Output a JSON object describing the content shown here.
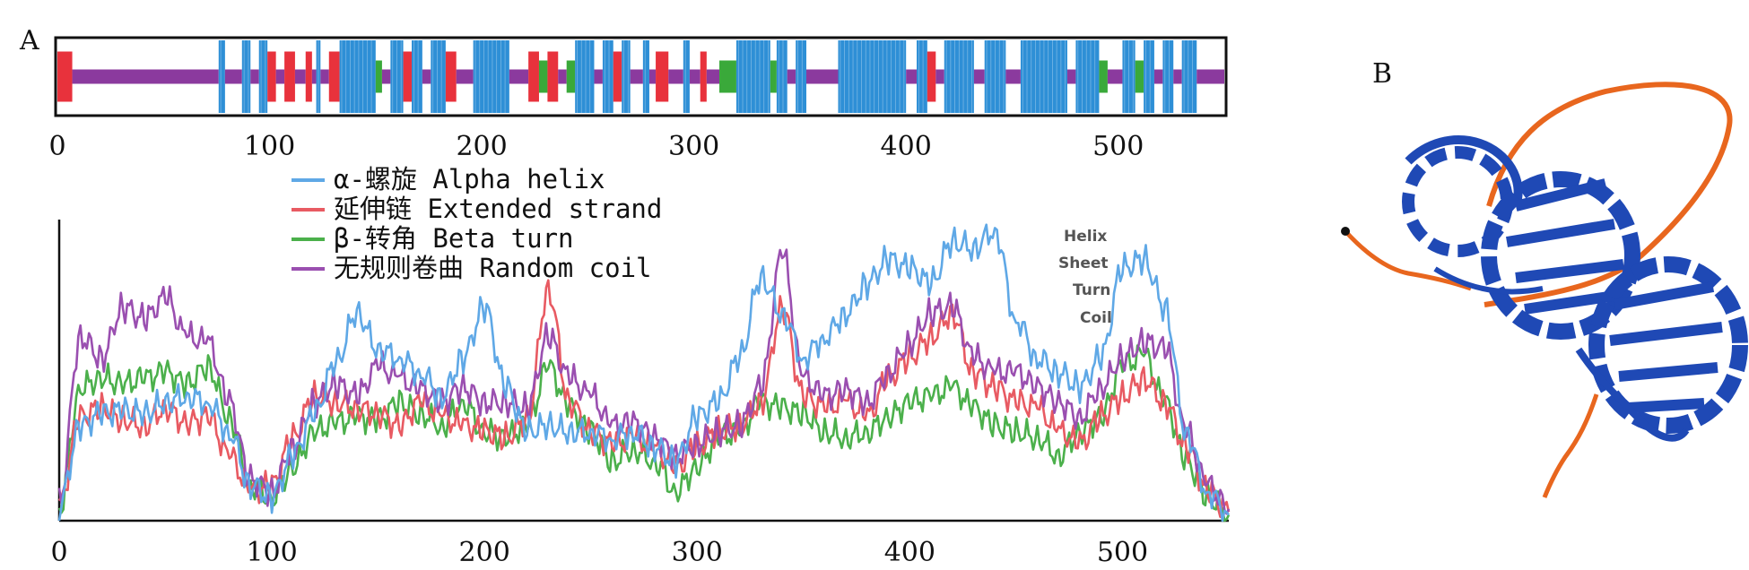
{
  "panels": {
    "a": "A",
    "b": "B"
  },
  "colors": {
    "helix": "#2e8fd6",
    "strand": "#e8323c",
    "turn": "#3aa93a",
    "coil": "#8b3a9e",
    "helix_line": "#5fa8e6",
    "strand_line": "#e85a62",
    "turn_line": "#4bb04b",
    "coil_line": "#9a4fb0",
    "protein_blue": "#1f49b5",
    "protein_orange": "#e8661e"
  },
  "chart_data": [
    {
      "type": "bar",
      "name": "secondary-structure-track",
      "xlim": [
        0,
        550
      ],
      "ticks": [
        "0",
        "100",
        "200",
        "300",
        "400",
        "500"
      ],
      "tick_values": [
        0,
        100,
        200,
        300,
        400,
        500
      ],
      "segments": [
        {
          "s": 0,
          "e": 7,
          "t": "E"
        },
        {
          "s": 7,
          "e": 76,
          "t": "C"
        },
        {
          "s": 76,
          "e": 79,
          "t": "H"
        },
        {
          "s": 79,
          "e": 87,
          "t": "C"
        },
        {
          "s": 87,
          "e": 91,
          "t": "H"
        },
        {
          "s": 91,
          "e": 95,
          "t": "C"
        },
        {
          "s": 95,
          "e": 99,
          "t": "H"
        },
        {
          "s": 99,
          "e": 103,
          "t": "E"
        },
        {
          "s": 103,
          "e": 107,
          "t": "C"
        },
        {
          "s": 107,
          "e": 112,
          "t": "E"
        },
        {
          "s": 112,
          "e": 117,
          "t": "C"
        },
        {
          "s": 117,
          "e": 120,
          "t": "E"
        },
        {
          "s": 120,
          "e": 122,
          "t": "C"
        },
        {
          "s": 122,
          "e": 124,
          "t": "H"
        },
        {
          "s": 124,
          "e": 128,
          "t": "C"
        },
        {
          "s": 128,
          "e": 133,
          "t": "E"
        },
        {
          "s": 133,
          "e": 150,
          "t": "H"
        },
        {
          "s": 150,
          "e": 153,
          "t": "T"
        },
        {
          "s": 153,
          "e": 157,
          "t": "C"
        },
        {
          "s": 157,
          "e": 163,
          "t": "H"
        },
        {
          "s": 163,
          "e": 167,
          "t": "E"
        },
        {
          "s": 167,
          "e": 172,
          "t": "H"
        },
        {
          "s": 172,
          "e": 176,
          "t": "C"
        },
        {
          "s": 176,
          "e": 183,
          "t": "H"
        },
        {
          "s": 183,
          "e": 188,
          "t": "E"
        },
        {
          "s": 188,
          "e": 196,
          "t": "C"
        },
        {
          "s": 196,
          "e": 213,
          "t": "H"
        },
        {
          "s": 213,
          "e": 222,
          "t": "C"
        },
        {
          "s": 222,
          "e": 227,
          "t": "E"
        },
        {
          "s": 227,
          "e": 231,
          "t": "T"
        },
        {
          "s": 231,
          "e": 236,
          "t": "E"
        },
        {
          "s": 236,
          "e": 240,
          "t": "C"
        },
        {
          "s": 240,
          "e": 244,
          "t": "T"
        },
        {
          "s": 244,
          "e": 253,
          "t": "H"
        },
        {
          "s": 253,
          "e": 257,
          "t": "C"
        },
        {
          "s": 257,
          "e": 262,
          "t": "H"
        },
        {
          "s": 262,
          "e": 266,
          "t": "E"
        },
        {
          "s": 266,
          "e": 270,
          "t": "H"
        },
        {
          "s": 270,
          "e": 276,
          "t": "C"
        },
        {
          "s": 276,
          "e": 279,
          "t": "H"
        },
        {
          "s": 279,
          "e": 282,
          "t": "C"
        },
        {
          "s": 282,
          "e": 288,
          "t": "E"
        },
        {
          "s": 288,
          "e": 295,
          "t": "C"
        },
        {
          "s": 295,
          "e": 298,
          "t": "H"
        },
        {
          "s": 298,
          "e": 303,
          "t": "C"
        },
        {
          "s": 303,
          "e": 306,
          "t": "E"
        },
        {
          "s": 306,
          "e": 312,
          "t": "C"
        },
        {
          "s": 312,
          "e": 320,
          "t": "T"
        },
        {
          "s": 320,
          "e": 336,
          "t": "H"
        },
        {
          "s": 336,
          "e": 339,
          "t": "T"
        },
        {
          "s": 339,
          "e": 344,
          "t": "H"
        },
        {
          "s": 344,
          "e": 348,
          "t": "C"
        },
        {
          "s": 348,
          "e": 353,
          "t": "H"
        },
        {
          "s": 353,
          "e": 368,
          "t": "C"
        },
        {
          "s": 368,
          "e": 400,
          "t": "H"
        },
        {
          "s": 400,
          "e": 405,
          "t": "C"
        },
        {
          "s": 405,
          "e": 410,
          "t": "H"
        },
        {
          "s": 410,
          "e": 414,
          "t": "E"
        },
        {
          "s": 414,
          "e": 418,
          "t": "C"
        },
        {
          "s": 418,
          "e": 432,
          "t": "H"
        },
        {
          "s": 432,
          "e": 437,
          "t": "C"
        },
        {
          "s": 437,
          "e": 447,
          "t": "H"
        },
        {
          "s": 447,
          "e": 454,
          "t": "C"
        },
        {
          "s": 454,
          "e": 476,
          "t": "H"
        },
        {
          "s": 476,
          "e": 480,
          "t": "C"
        },
        {
          "s": 480,
          "e": 491,
          "t": "H"
        },
        {
          "s": 491,
          "e": 495,
          "t": "T"
        },
        {
          "s": 495,
          "e": 502,
          "t": "C"
        },
        {
          "s": 502,
          "e": 508,
          "t": "H"
        },
        {
          "s": 508,
          "e": 512,
          "t": "T"
        },
        {
          "s": 512,
          "e": 517,
          "t": "H"
        },
        {
          "s": 517,
          "e": 521,
          "t": "C"
        },
        {
          "s": 521,
          "e": 526,
          "t": "H"
        },
        {
          "s": 526,
          "e": 530,
          "t": "C"
        },
        {
          "s": 530,
          "e": 537,
          "t": "H"
        },
        {
          "s": 537,
          "e": 550,
          "t": "C"
        }
      ]
    },
    {
      "type": "line",
      "name": "structure-propensity",
      "xlim": [
        0,
        550
      ],
      "ylim": [
        0,
        1
      ],
      "ticks": [
        "0",
        "100",
        "200",
        "300",
        "400",
        "500"
      ],
      "tick_values": [
        0,
        100,
        200,
        300,
        400,
        500
      ],
      "legend": [
        "α-螺旋 Alpha helix",
        "延伸链 Extended strand",
        "β-转角 Beta turn",
        "无规则卷曲 Random coil"
      ],
      "inset_legend": [
        "Helix",
        "Sheet",
        "Turn",
        "Coil"
      ],
      "x": [
        0,
        10,
        20,
        30,
        40,
        50,
        60,
        70,
        80,
        90,
        100,
        110,
        120,
        130,
        140,
        150,
        160,
        170,
        180,
        190,
        200,
        210,
        220,
        230,
        240,
        250,
        260,
        270,
        280,
        290,
        300,
        310,
        320,
        330,
        340,
        350,
        360,
        370,
        380,
        390,
        400,
        410,
        420,
        430,
        440,
        450,
        460,
        470,
        480,
        490,
        500,
        510,
        520,
        530,
        540,
        550
      ],
      "series": [
        {
          "name": "Alpha helix",
          "key": "helix",
          "values": [
            0.05,
            0.32,
            0.36,
            0.37,
            0.36,
            0.4,
            0.42,
            0.4,
            0.3,
            0.12,
            0.08,
            0.22,
            0.36,
            0.53,
            0.7,
            0.58,
            0.55,
            0.5,
            0.42,
            0.55,
            0.72,
            0.45,
            0.3,
            0.32,
            0.3,
            0.3,
            0.28,
            0.3,
            0.25,
            0.2,
            0.35,
            0.4,
            0.55,
            0.82,
            0.7,
            0.55,
            0.62,
            0.7,
            0.8,
            0.88,
            0.85,
            0.8,
            0.94,
            0.92,
            0.98,
            0.68,
            0.55,
            0.5,
            0.45,
            0.55,
            0.85,
            0.88,
            0.72,
            0.3,
            0.1,
            0.02
          ]
        },
        {
          "name": "Extended strand",
          "key": "strand",
          "values": [
            0.05,
            0.35,
            0.38,
            0.34,
            0.32,
            0.38,
            0.33,
            0.35,
            0.22,
            0.1,
            0.12,
            0.28,
            0.42,
            0.4,
            0.38,
            0.36,
            0.32,
            0.4,
            0.35,
            0.32,
            0.3,
            0.28,
            0.34,
            0.78,
            0.4,
            0.3,
            0.26,
            0.28,
            0.24,
            0.18,
            0.25,
            0.3,
            0.32,
            0.4,
            0.72,
            0.42,
            0.38,
            0.4,
            0.35,
            0.48,
            0.55,
            0.62,
            0.7,
            0.5,
            0.45,
            0.4,
            0.38,
            0.3,
            0.26,
            0.35,
            0.42,
            0.48,
            0.4,
            0.25,
            0.1,
            0.03
          ]
        },
        {
          "name": "Beta turn",
          "key": "turn",
          "values": [
            0.04,
            0.45,
            0.48,
            0.46,
            0.48,
            0.5,
            0.46,
            0.52,
            0.35,
            0.12,
            0.08,
            0.18,
            0.3,
            0.33,
            0.35,
            0.34,
            0.4,
            0.36,
            0.32,
            0.4,
            0.3,
            0.28,
            0.32,
            0.52,
            0.38,
            0.3,
            0.2,
            0.24,
            0.2,
            0.1,
            0.18,
            0.28,
            0.3,
            0.4,
            0.38,
            0.36,
            0.3,
            0.28,
            0.3,
            0.35,
            0.4,
            0.42,
            0.45,
            0.38,
            0.32,
            0.3,
            0.28,
            0.22,
            0.3,
            0.35,
            0.52,
            0.56,
            0.4,
            0.2,
            0.08,
            0.02
          ]
        },
        {
          "name": "Random coil",
          "key": "coil",
          "values": [
            0.06,
            0.62,
            0.55,
            0.72,
            0.68,
            0.75,
            0.62,
            0.6,
            0.4,
            0.14,
            0.1,
            0.25,
            0.4,
            0.46,
            0.42,
            0.52,
            0.48,
            0.44,
            0.4,
            0.45,
            0.4,
            0.4,
            0.38,
            0.62,
            0.48,
            0.42,
            0.32,
            0.33,
            0.28,
            0.22,
            0.26,
            0.3,
            0.32,
            0.45,
            0.9,
            0.48,
            0.42,
            0.44,
            0.4,
            0.5,
            0.6,
            0.7,
            0.72,
            0.55,
            0.5,
            0.5,
            0.45,
            0.4,
            0.35,
            0.45,
            0.55,
            0.6,
            0.58,
            0.3,
            0.12,
            0.04
          ]
        }
      ]
    }
  ]
}
